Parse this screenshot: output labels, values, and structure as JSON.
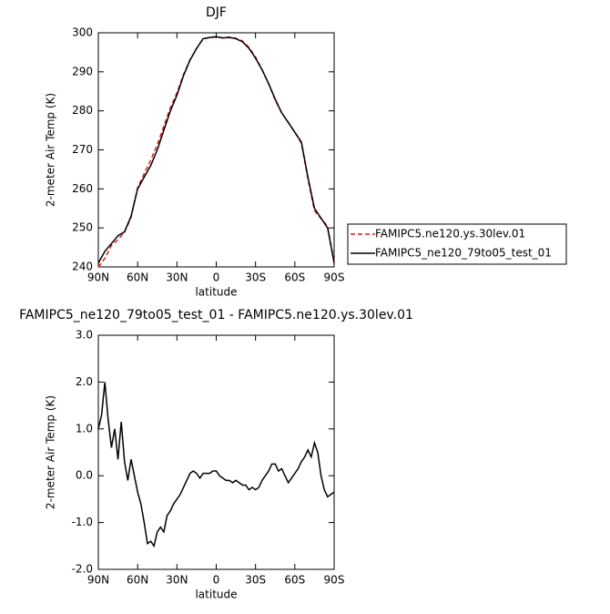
{
  "chart_data": [
    {
      "type": "line",
      "title": "DJF",
      "xlabel": "latitude",
      "ylabel": "2-meter Air Temp (K)",
      "x": [
        90,
        85,
        80,
        75,
        70,
        65,
        60,
        55,
        50,
        45,
        40,
        35,
        30,
        25,
        20,
        15,
        10,
        5,
        0,
        -5,
        -10,
        -15,
        -20,
        -25,
        -30,
        -35,
        -40,
        -45,
        -50,
        -55,
        -60,
        -65,
        -70,
        -75,
        -80,
        -85,
        -90
      ],
      "xlim": [
        90,
        -90
      ],
      "xticks": [
        {
          "value": 90,
          "label": "90N"
        },
        {
          "value": 60,
          "label": "60N"
        },
        {
          "value": 30,
          "label": "30N"
        },
        0,
        {
          "value": -30,
          "label": "30S"
        },
        {
          "value": -60,
          "label": "60S"
        },
        {
          "value": -90,
          "label": "90S"
        }
      ],
      "ylim": [
        240,
        300
      ],
      "yticks": [
        240,
        250,
        260,
        270,
        280,
        290,
        300
      ],
      "legend": "outside-right",
      "series": [
        {
          "name": "FAMIPC5.ne120.ys.30lev.01",
          "color": "#e41a1c",
          "linestyle": "dashed",
          "values": [
            240,
            242.2,
            245.5,
            247,
            248.9,
            252.7,
            260.3,
            263.9,
            267.4,
            271.3,
            276.1,
            280.8,
            284.6,
            289.3,
            293.1,
            295.95,
            298.5,
            298.75,
            298.9,
            298.7,
            298.9,
            298.6,
            297.9,
            296.25,
            293.8,
            290.6,
            286.9,
            282.75,
            279.4,
            277.1,
            274.5,
            271.7,
            262.5,
            254.4,
            252.4,
            250.4,
            241.4
          ]
        },
        {
          "name": "FAMIPC5_ne120_79to05_test_01",
          "color": "#000000",
          "linestyle": "solid",
          "values": [
            241,
            244,
            246,
            248,
            249,
            253,
            260,
            263,
            266,
            270,
            275,
            280,
            284,
            289,
            293,
            296,
            298.5,
            298.8,
            299,
            298.7,
            298.8,
            298.5,
            297.7,
            296,
            293.5,
            290.5,
            287,
            283,
            279.5,
            277,
            274.5,
            272,
            263,
            255,
            252.5,
            250,
            241
          ]
        }
      ]
    },
    {
      "type": "line",
      "title": "FAMIPC5_ne120_79to05_test_01 - FAMIPC5.ne120.ys.30lev.01",
      "xlabel": "latitude",
      "ylabel": "2-meter Air Temp (K)",
      "x": [
        90,
        87.5,
        85,
        82.5,
        80,
        77.5,
        75,
        72.5,
        70,
        67.5,
        65,
        62.5,
        60,
        57.5,
        55,
        52.5,
        50,
        47.5,
        45,
        42.5,
        40,
        37.5,
        35,
        32.5,
        30,
        27.5,
        25,
        22.5,
        20,
        17.5,
        15,
        12.5,
        10,
        7.5,
        5,
        2.5,
        0,
        -2.5,
        -5,
        -7.5,
        -10,
        -12.5,
        -15,
        -17.5,
        -20,
        -22.5,
        -25,
        -27.5,
        -30,
        -32.5,
        -35,
        -37.5,
        -40,
        -42.5,
        -45,
        -47.5,
        -50,
        -52.5,
        -55,
        -57.5,
        -60,
        -62.5,
        -65,
        -67.5,
        -70,
        -72.5,
        -75,
        -77.5,
        -80,
        -82.5,
        -85,
        -87.5,
        -90
      ],
      "xlim": [
        90,
        -90
      ],
      "xticks": [
        {
          "value": 90,
          "label": "90N"
        },
        {
          "value": 60,
          "label": "60N"
        },
        {
          "value": 30,
          "label": "30N"
        },
        0,
        {
          "value": -30,
          "label": "30S"
        },
        {
          "value": -60,
          "label": "60S"
        },
        {
          "value": -90,
          "label": "90S"
        }
      ],
      "ylim": [
        -2,
        3
      ],
      "yticks": [
        {
          "value": -2,
          "label": "-2.0"
        },
        {
          "value": -1,
          "label": "-1.0"
        },
        {
          "value": 0,
          "label": "0.0"
        },
        {
          "value": 1,
          "label": "1.0"
        },
        {
          "value": 2,
          "label": "2.0"
        },
        {
          "value": 3,
          "label": "3.0"
        }
      ],
      "series": [
        {
          "color": "#000000",
          "linestyle": "solid",
          "values": [
            1.0,
            1.3,
            2.0,
            1.2,
            0.6,
            1.0,
            0.35,
            1.15,
            0.3,
            -0.1,
            0.35,
            0.0,
            -0.35,
            -0.6,
            -1.0,
            -1.45,
            -1.4,
            -1.5,
            -1.2,
            -1.1,
            -1.2,
            -0.85,
            -0.75,
            -0.6,
            -0.5,
            -0.4,
            -0.25,
            -0.1,
            0.05,
            0.1,
            0.05,
            -0.05,
            0.05,
            0.05,
            0.05,
            0.1,
            0.1,
            0.0,
            -0.05,
            -0.1,
            -0.1,
            -0.15,
            -0.1,
            -0.15,
            -0.2,
            -0.2,
            -0.3,
            -0.25,
            -0.3,
            -0.25,
            -0.1,
            0.0,
            0.1,
            0.25,
            0.25,
            0.1,
            0.15,
            0.0,
            -0.15,
            -0.05,
            0.05,
            0.15,
            0.3,
            0.4,
            0.55,
            0.4,
            0.7,
            0.5,
            0.0,
            -0.3,
            -0.45,
            -0.4,
            -0.35
          ]
        }
      ]
    }
  ]
}
